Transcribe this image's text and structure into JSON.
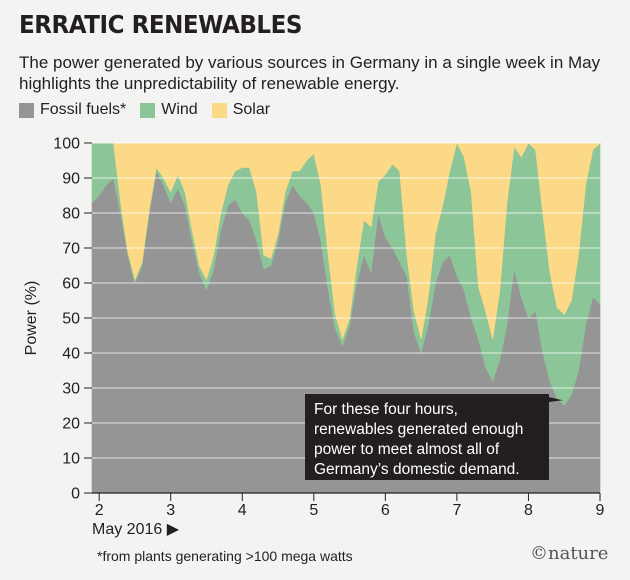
{
  "header": {
    "title": "ERRATIC RENEWABLES",
    "subtitle": "The power generated by various sources in Germany in a single week in May highlights the unpredictability of renewable energy."
  },
  "colors": {
    "fossil": "#959595",
    "wind": "#8cc597",
    "solar": "#fcd986",
    "background": "#f3f3f2",
    "annotation_bg": "#231f20"
  },
  "chart_data": {
    "type": "area",
    "stacked": true,
    "title": "ERRATIC RENEWABLES",
    "xlabel": "May 2016 ▶",
    "ylabel": "Power (%)",
    "xlim": [
      1.9,
      9.0
    ],
    "ylim": [
      0,
      100
    ],
    "xticks": [
      2,
      3,
      4,
      5,
      6,
      7,
      8,
      9
    ],
    "yticks": [
      0,
      10,
      20,
      30,
      40,
      50,
      60,
      70,
      80,
      90,
      100
    ],
    "legend": [
      "Fossil fuels*",
      "Wind",
      "Solar"
    ],
    "series": [
      {
        "name": "Fossil fuels*",
        "x": [
          1.9,
          2.0,
          2.1,
          2.2,
          2.3,
          2.4,
          2.5,
          2.6,
          2.7,
          2.8,
          2.9,
          3.0,
          3.1,
          3.2,
          3.3,
          3.4,
          3.5,
          3.6,
          3.7,
          3.8,
          3.9,
          4.0,
          4.1,
          4.2,
          4.3,
          4.4,
          4.5,
          4.6,
          4.7,
          4.8,
          4.9,
          5.0,
          5.1,
          5.2,
          5.3,
          5.4,
          5.5,
          5.6,
          5.7,
          5.8,
          5.9,
          6.0,
          6.1,
          6.2,
          6.3,
          6.4,
          6.5,
          6.6,
          6.7,
          6.8,
          6.9,
          7.0,
          7.1,
          7.2,
          7.3,
          7.4,
          7.5,
          7.6,
          7.7,
          7.8,
          7.9,
          8.0,
          8.1,
          8.2,
          8.3,
          8.4,
          8.5,
          8.6,
          8.7,
          8.8,
          8.9,
          9.0
        ],
        "values": [
          83,
          85,
          88,
          90,
          80,
          68,
          60,
          65,
          80,
          92,
          88,
          83,
          87,
          82,
          72,
          63,
          58,
          64,
          75,
          82,
          84,
          80,
          78,
          72,
          64,
          65,
          72,
          83,
          88,
          85,
          83,
          80,
          72,
          58,
          47,
          42,
          48,
          60,
          68,
          63,
          80,
          73,
          70,
          66,
          62,
          46,
          40,
          48,
          60,
          66,
          68,
          62,
          58,
          50,
          44,
          36,
          32,
          38,
          48,
          64,
          56,
          50,
          52,
          40,
          32,
          27,
          25,
          28,
          35,
          48,
          56,
          54
        ]
      },
      {
        "name": "Wind",
        "x": [
          1.9,
          2.0,
          2.1,
          2.2,
          2.3,
          2.4,
          2.5,
          2.6,
          2.7,
          2.8,
          2.9,
          3.0,
          3.1,
          3.2,
          3.3,
          3.4,
          3.5,
          3.6,
          3.7,
          3.8,
          3.9,
          4.0,
          4.1,
          4.2,
          4.3,
          4.4,
          4.5,
          4.6,
          4.7,
          4.8,
          4.9,
          5.0,
          5.1,
          5.2,
          5.3,
          5.4,
          5.5,
          5.6,
          5.7,
          5.8,
          5.9,
          6.0,
          6.1,
          6.2,
          6.3,
          6.4,
          6.5,
          6.6,
          6.7,
          6.8,
          6.9,
          7.0,
          7.1,
          7.2,
          7.3,
          7.4,
          7.5,
          7.6,
          7.7,
          7.8,
          7.9,
          8.0,
          8.1,
          8.2,
          8.3,
          8.4,
          8.5,
          8.6,
          8.7,
          8.8,
          8.9,
          9.0
        ],
        "values": [
          17,
          15,
          12,
          10,
          3,
          1,
          1,
          1,
          1,
          1,
          2,
          3,
          4,
          4,
          3,
          2,
          3,
          4,
          5,
          6,
          8,
          13,
          15,
          14,
          4,
          2,
          2,
          3,
          4,
          7,
          12,
          17,
          16,
          10,
          4,
          2,
          2,
          5,
          10,
          13,
          9,
          18,
          24,
          26,
          6,
          6,
          4,
          8,
          14,
          16,
          24,
          38,
          38,
          36,
          15,
          16,
          12,
          20,
          35,
          35,
          40,
          50,
          46,
          40,
          31,
          26,
          26,
          27,
          33,
          40,
          42,
          46
        ]
      },
      {
        "name": "Solar",
        "x": [
          1.9,
          2.0,
          2.1,
          2.2,
          2.3,
          2.4,
          2.5,
          2.6,
          2.7,
          2.8,
          2.9,
          3.0,
          3.1,
          3.2,
          3.3,
          3.4,
          3.5,
          3.6,
          3.7,
          3.8,
          3.9,
          4.0,
          4.1,
          4.2,
          4.3,
          4.4,
          4.5,
          4.6,
          4.7,
          4.8,
          4.9,
          5.0,
          5.1,
          5.2,
          5.3,
          5.4,
          5.5,
          5.6,
          5.7,
          5.8,
          5.9,
          6.0,
          6.1,
          6.2,
          6.3,
          6.4,
          6.5,
          6.6,
          6.7,
          6.8,
          6.9,
          7.0,
          7.1,
          7.2,
          7.3,
          7.4,
          7.5,
          7.6,
          7.7,
          7.8,
          7.9,
          8.0,
          8.1,
          8.2,
          8.3,
          8.4,
          8.5,
          8.6,
          8.7,
          8.8,
          8.9,
          9.0
        ],
        "values": [
          0,
          0,
          0,
          0,
          17,
          31,
          39,
          34,
          19,
          7,
          10,
          14,
          9,
          14,
          25,
          35,
          39,
          32,
          20,
          12,
          8,
          7,
          7,
          14,
          32,
          33,
          26,
          14,
          8,
          8,
          5,
          3,
          12,
          32,
          49,
          56,
          50,
          35,
          22,
          24,
          11,
          9,
          6,
          8,
          32,
          48,
          56,
          44,
          26,
          18,
          8,
          0,
          4,
          14,
          41,
          48,
          56,
          42,
          17,
          1,
          4,
          0,
          2,
          20,
          37,
          47,
          49,
          45,
          32,
          12,
          2,
          0
        ]
      }
    ],
    "annotation": {
      "lines": [
        "For these four hours,",
        "renewables generated enough",
        "power to meet almost all of",
        "Germany’s domestic demand."
      ],
      "pointer_x": 8.48,
      "pointer_y": 26.5
    }
  },
  "footer": {
    "footnote": "*from plants generating >100 mega watts",
    "brand": "©nature"
  }
}
